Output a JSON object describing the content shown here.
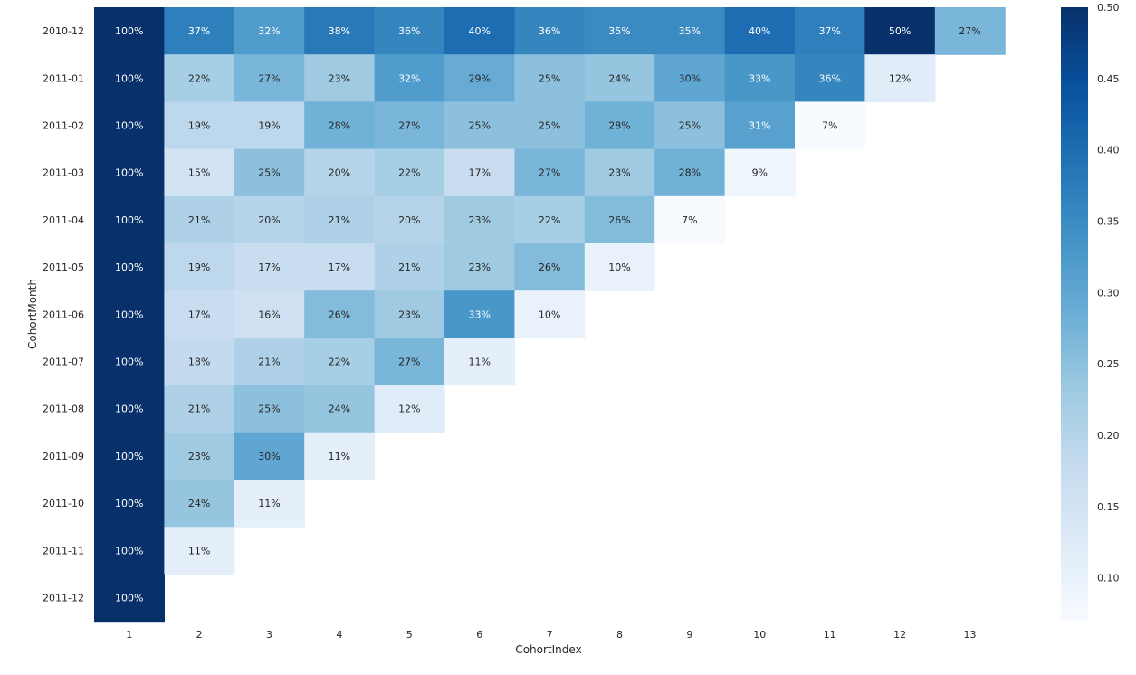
{
  "chart_data": {
    "type": "heatmap",
    "title": "",
    "xlabel": "CohortIndex",
    "ylabel": "CohortMonth",
    "x": [
      "1",
      "2",
      "3",
      "4",
      "5",
      "6",
      "7",
      "8",
      "9",
      "10",
      "11",
      "12",
      "13"
    ],
    "y": [
      "2010-12",
      "2011-01",
      "2011-02",
      "2011-03",
      "2011-04",
      "2011-05",
      "2011-06",
      "2011-07",
      "2011-08",
      "2011-09",
      "2011-10",
      "2011-11",
      "2011-12"
    ],
    "values": [
      [
        100,
        37,
        32,
        38,
        36,
        40,
        36,
        35,
        35,
        40,
        37,
        50,
        27
      ],
      [
        100,
        22,
        27,
        23,
        32,
        29,
        25,
        24,
        30,
        33,
        36,
        12
      ],
      [
        100,
        19,
        19,
        28,
        27,
        25,
        25,
        28,
        25,
        31,
        7
      ],
      [
        100,
        15,
        25,
        20,
        22,
        17,
        27,
        23,
        28,
        9
      ],
      [
        100,
        21,
        20,
        21,
        20,
        23,
        22,
        26,
        7
      ],
      [
        100,
        19,
        17,
        17,
        21,
        23,
        26,
        10
      ],
      [
        100,
        17,
        16,
        26,
        23,
        33,
        10
      ],
      [
        100,
        18,
        21,
        22,
        27,
        11
      ],
      [
        100,
        21,
        25,
        24,
        12
      ],
      [
        100,
        23,
        30,
        11
      ],
      [
        100,
        24,
        11
      ],
      [
        100,
        11
      ],
      [
        100
      ]
    ],
    "value_format": "percent",
    "colorscale": "Blues",
    "colorbar": {
      "range": [
        0.07,
        0.5
      ],
      "ticks": [
        "0.10",
        "0.15",
        "0.20",
        "0.25",
        "0.30",
        "0.35",
        "0.40",
        "0.45",
        "0.50"
      ]
    }
  }
}
